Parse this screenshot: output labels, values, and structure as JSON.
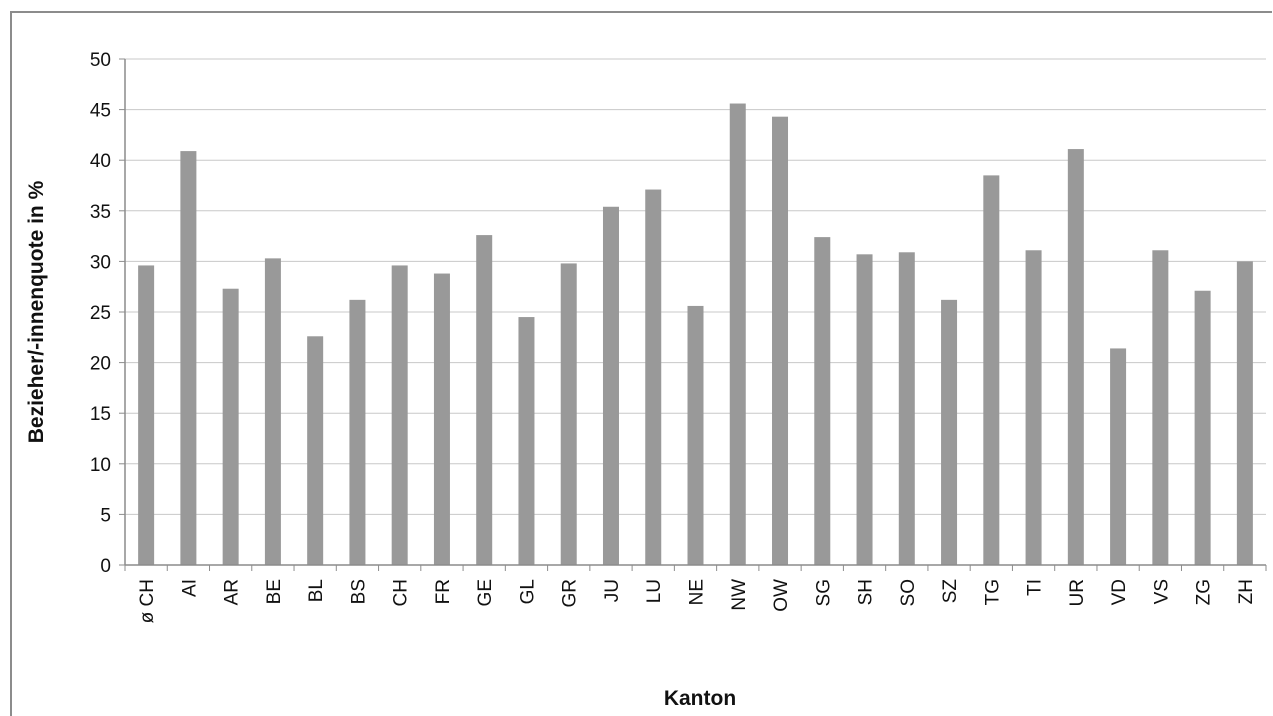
{
  "chart_data": {
    "type": "bar",
    "title": "",
    "xlabel": "Kanton",
    "ylabel": "Bezieher/-innenquote in %",
    "ylim": [
      0,
      50
    ],
    "yticks": [
      0,
      5,
      10,
      15,
      20,
      25,
      30,
      35,
      40,
      45,
      50
    ],
    "grid": true,
    "legend": "none",
    "bar_color": "#999999",
    "grid_color": "#c8c8c8",
    "categories": [
      "ø CH",
      "AI",
      "AR",
      "BE",
      "BL",
      "BS",
      "CH",
      "FR",
      "GE",
      "GL",
      "GR",
      "JU",
      "LU",
      "NE",
      "NW",
      "OW",
      "SG",
      "SH",
      "SO",
      "SZ",
      "TG",
      "TI",
      "UR",
      "VD",
      "VS",
      "ZG",
      "ZH"
    ],
    "values": [
      29.6,
      40.9,
      27.3,
      30.3,
      22.6,
      26.2,
      29.6,
      28.8,
      32.6,
      24.5,
      29.8,
      35.4,
      37.1,
      25.6,
      45.6,
      44.3,
      32.4,
      30.7,
      30.9,
      26.2,
      38.5,
      31.1,
      41.1,
      21.4,
      31.1,
      27.1,
      30.0
    ]
  }
}
